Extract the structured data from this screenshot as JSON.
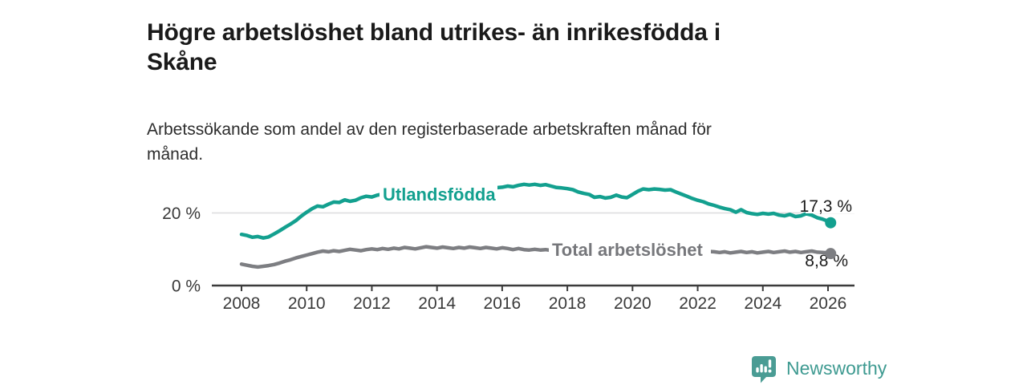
{
  "header": {
    "title": "Högre arbetslöshet bland utrikes- än inrikesfödda i\nSkåne",
    "subtitle": "Arbetssökande som andel av den registerbaserade arbetskraften månad för\nmånad."
  },
  "footer": {
    "brand": "Newsworthy"
  },
  "colors": {
    "accent_teal": "#13a08f",
    "series_gray": "#7d7e82",
    "grid": "#dcdcdd",
    "axis": "#3b3b3b",
    "text_dark": "#1a1a1a",
    "logo_teal": "#4a9c94"
  },
  "chart_data": {
    "type": "line",
    "title": "Högre arbetslöshet bland utrikes- än inrikesfödda i Skåne",
    "subtitle": "Arbetssökande som andel av den registerbaserade arbetskraften månad för månad.",
    "xlabel": "",
    "ylabel": "",
    "xlim": [
      2007.7,
      2026.8
    ],
    "ylim": [
      0,
      30
    ],
    "grid": "single horizontal gridline at 20 %",
    "legend": "inline labels on lines",
    "x_ticks": [
      2008,
      2010,
      2012,
      2014,
      2016,
      2018,
      2020,
      2022,
      2024,
      2026
    ],
    "y_ticks": [
      {
        "value": 20,
        "label": "20 %"
      },
      {
        "value": 0,
        "label": "0 %"
      }
    ],
    "series": [
      {
        "name": "Utlandsfödda",
        "color": "#13a08f",
        "label_color": "#13a08f",
        "end_label": "17,3 %",
        "end_value": 17.3,
        "points": [
          [
            2008.0,
            14.1
          ],
          [
            2008.17,
            13.8
          ],
          [
            2008.33,
            13.3
          ],
          [
            2008.5,
            13.5
          ],
          [
            2008.67,
            13.1
          ],
          [
            2008.83,
            13.4
          ],
          [
            2009.0,
            14.2
          ],
          [
            2009.17,
            15.1
          ],
          [
            2009.33,
            16.0
          ],
          [
            2009.5,
            16.9
          ],
          [
            2009.67,
            17.9
          ],
          [
            2009.83,
            19.1
          ],
          [
            2010.0,
            20.2
          ],
          [
            2010.17,
            21.2
          ],
          [
            2010.33,
            21.9
          ],
          [
            2010.5,
            21.7
          ],
          [
            2010.67,
            22.4
          ],
          [
            2010.83,
            23.0
          ],
          [
            2011.0,
            22.9
          ],
          [
            2011.17,
            23.6
          ],
          [
            2011.33,
            23.2
          ],
          [
            2011.5,
            23.5
          ],
          [
            2011.67,
            24.2
          ],
          [
            2011.83,
            24.6
          ],
          [
            2012.0,
            24.4
          ],
          [
            2012.17,
            24.9
          ],
          [
            2012.33,
            25.2
          ],
          [
            2012.5,
            25.0
          ],
          [
            2012.75,
            25.3
          ],
          [
            2013.0,
            25.5
          ],
          [
            2013.25,
            25.7
          ],
          [
            2013.5,
            25.9
          ],
          [
            2013.75,
            26.1
          ],
          [
            2014.0,
            26.2
          ],
          [
            2014.25,
            26.4
          ],
          [
            2014.5,
            26.5
          ],
          [
            2014.75,
            26.6
          ],
          [
            2015.0,
            26.7
          ],
          [
            2015.25,
            26.8
          ],
          [
            2015.5,
            26.9
          ],
          [
            2015.75,
            26.9
          ],
          [
            2016.0,
            27.1
          ],
          [
            2016.17,
            27.4
          ],
          [
            2016.33,
            27.2
          ],
          [
            2016.5,
            27.6
          ],
          [
            2016.67,
            27.9
          ],
          [
            2016.83,
            27.7
          ],
          [
            2017.0,
            27.9
          ],
          [
            2017.17,
            27.6
          ],
          [
            2017.33,
            27.8
          ],
          [
            2017.5,
            27.4
          ],
          [
            2017.67,
            27.0
          ],
          [
            2017.83,
            26.9
          ],
          [
            2018.0,
            26.7
          ],
          [
            2018.17,
            26.4
          ],
          [
            2018.33,
            25.8
          ],
          [
            2018.5,
            25.4
          ],
          [
            2018.67,
            25.1
          ],
          [
            2018.83,
            24.3
          ],
          [
            2019.0,
            24.5
          ],
          [
            2019.17,
            24.1
          ],
          [
            2019.33,
            24.3
          ],
          [
            2019.5,
            24.9
          ],
          [
            2019.67,
            24.4
          ],
          [
            2019.83,
            24.2
          ],
          [
            2020.0,
            25.1
          ],
          [
            2020.17,
            26.0
          ],
          [
            2020.33,
            26.6
          ],
          [
            2020.5,
            26.4
          ],
          [
            2020.67,
            26.6
          ],
          [
            2020.83,
            26.5
          ],
          [
            2021.0,
            26.3
          ],
          [
            2021.17,
            26.4
          ],
          [
            2021.33,
            25.8
          ],
          [
            2021.5,
            25.2
          ],
          [
            2021.67,
            24.6
          ],
          [
            2021.83,
            24.0
          ],
          [
            2022.0,
            23.5
          ],
          [
            2022.17,
            23.1
          ],
          [
            2022.33,
            22.5
          ],
          [
            2022.5,
            22.1
          ],
          [
            2022.67,
            21.6
          ],
          [
            2022.83,
            21.2
          ],
          [
            2023.0,
            20.9
          ],
          [
            2023.17,
            20.2
          ],
          [
            2023.33,
            20.9
          ],
          [
            2023.5,
            20.1
          ],
          [
            2023.67,
            19.8
          ],
          [
            2023.83,
            19.6
          ],
          [
            2024.0,
            19.9
          ],
          [
            2024.17,
            19.7
          ],
          [
            2024.33,
            19.9
          ],
          [
            2024.5,
            19.4
          ],
          [
            2024.67,
            19.2
          ],
          [
            2024.83,
            19.6
          ],
          [
            2025.0,
            19.0
          ],
          [
            2025.17,
            19.2
          ],
          [
            2025.33,
            19.8
          ],
          [
            2025.5,
            19.4
          ],
          [
            2025.67,
            18.7
          ],
          [
            2025.83,
            18.3
          ],
          [
            2026.0,
            17.7
          ],
          [
            2026.08,
            17.3
          ]
        ]
      },
      {
        "name": "Total arbetslöshet",
        "color": "#7d7e82",
        "label_color": "#76777b",
        "end_label": "8,8 %",
        "end_value": 8.8,
        "points": [
          [
            2008.0,
            5.9
          ],
          [
            2008.17,
            5.6
          ],
          [
            2008.33,
            5.3
          ],
          [
            2008.5,
            5.1
          ],
          [
            2008.67,
            5.3
          ],
          [
            2008.83,
            5.5
          ],
          [
            2009.0,
            5.8
          ],
          [
            2009.17,
            6.2
          ],
          [
            2009.33,
            6.7
          ],
          [
            2009.5,
            7.1
          ],
          [
            2009.67,
            7.6
          ],
          [
            2009.83,
            8.0
          ],
          [
            2010.0,
            8.4
          ],
          [
            2010.17,
            8.8
          ],
          [
            2010.33,
            9.2
          ],
          [
            2010.5,
            9.5
          ],
          [
            2010.67,
            9.3
          ],
          [
            2010.83,
            9.6
          ],
          [
            2011.0,
            9.4
          ],
          [
            2011.17,
            9.7
          ],
          [
            2011.33,
            10.0
          ],
          [
            2011.5,
            9.8
          ],
          [
            2011.67,
            9.6
          ],
          [
            2011.83,
            9.9
          ],
          [
            2012.0,
            10.1
          ],
          [
            2012.17,
            9.9
          ],
          [
            2012.33,
            10.2
          ],
          [
            2012.5,
            10.0
          ],
          [
            2012.67,
            10.3
          ],
          [
            2012.83,
            10.1
          ],
          [
            2013.0,
            10.5
          ],
          [
            2013.17,
            10.3
          ],
          [
            2013.33,
            10.1
          ],
          [
            2013.5,
            10.4
          ],
          [
            2013.67,
            10.7
          ],
          [
            2013.83,
            10.5
          ],
          [
            2014.0,
            10.3
          ],
          [
            2014.17,
            10.6
          ],
          [
            2014.33,
            10.4
          ],
          [
            2014.5,
            10.2
          ],
          [
            2014.67,
            10.5
          ],
          [
            2014.83,
            10.3
          ],
          [
            2015.0,
            10.6
          ],
          [
            2015.17,
            10.4
          ],
          [
            2015.33,
            10.2
          ],
          [
            2015.5,
            10.5
          ],
          [
            2015.67,
            10.3
          ],
          [
            2015.83,
            10.1
          ],
          [
            2016.0,
            10.4
          ],
          [
            2016.17,
            10.2
          ],
          [
            2016.33,
            9.9
          ],
          [
            2016.5,
            10.2
          ],
          [
            2016.67,
            9.9
          ],
          [
            2016.83,
            9.8
          ],
          [
            2017.0,
            10.0
          ],
          [
            2017.17,
            9.8
          ],
          [
            2017.33,
            9.9
          ],
          [
            2017.5,
            9.7
          ],
          [
            2018.0,
            9.6
          ],
          [
            2018.5,
            9.7
          ],
          [
            2019.0,
            9.5
          ],
          [
            2019.5,
            9.4
          ],
          [
            2020.0,
            9.8
          ],
          [
            2020.5,
            10.6
          ],
          [
            2021.0,
            10.3
          ],
          [
            2021.5,
            9.8
          ],
          [
            2022.0,
            9.5
          ],
          [
            2022.33,
            9.4
          ],
          [
            2022.5,
            9.3
          ],
          [
            2022.67,
            9.1
          ],
          [
            2022.83,
            9.3
          ],
          [
            2023.0,
            9.0
          ],
          [
            2023.17,
            9.2
          ],
          [
            2023.33,
            9.4
          ],
          [
            2023.5,
            9.1
          ],
          [
            2023.67,
            9.3
          ],
          [
            2023.83,
            9.0
          ],
          [
            2024.0,
            9.2
          ],
          [
            2024.17,
            9.4
          ],
          [
            2024.33,
            9.1
          ],
          [
            2024.5,
            9.3
          ],
          [
            2024.67,
            9.5
          ],
          [
            2024.83,
            9.2
          ],
          [
            2025.0,
            9.4
          ],
          [
            2025.17,
            9.1
          ],
          [
            2025.33,
            9.3
          ],
          [
            2025.5,
            9.5
          ],
          [
            2025.67,
            9.2
          ],
          [
            2025.83,
            9.1
          ],
          [
            2026.0,
            9.0
          ],
          [
            2026.08,
            8.8
          ]
        ]
      }
    ]
  }
}
